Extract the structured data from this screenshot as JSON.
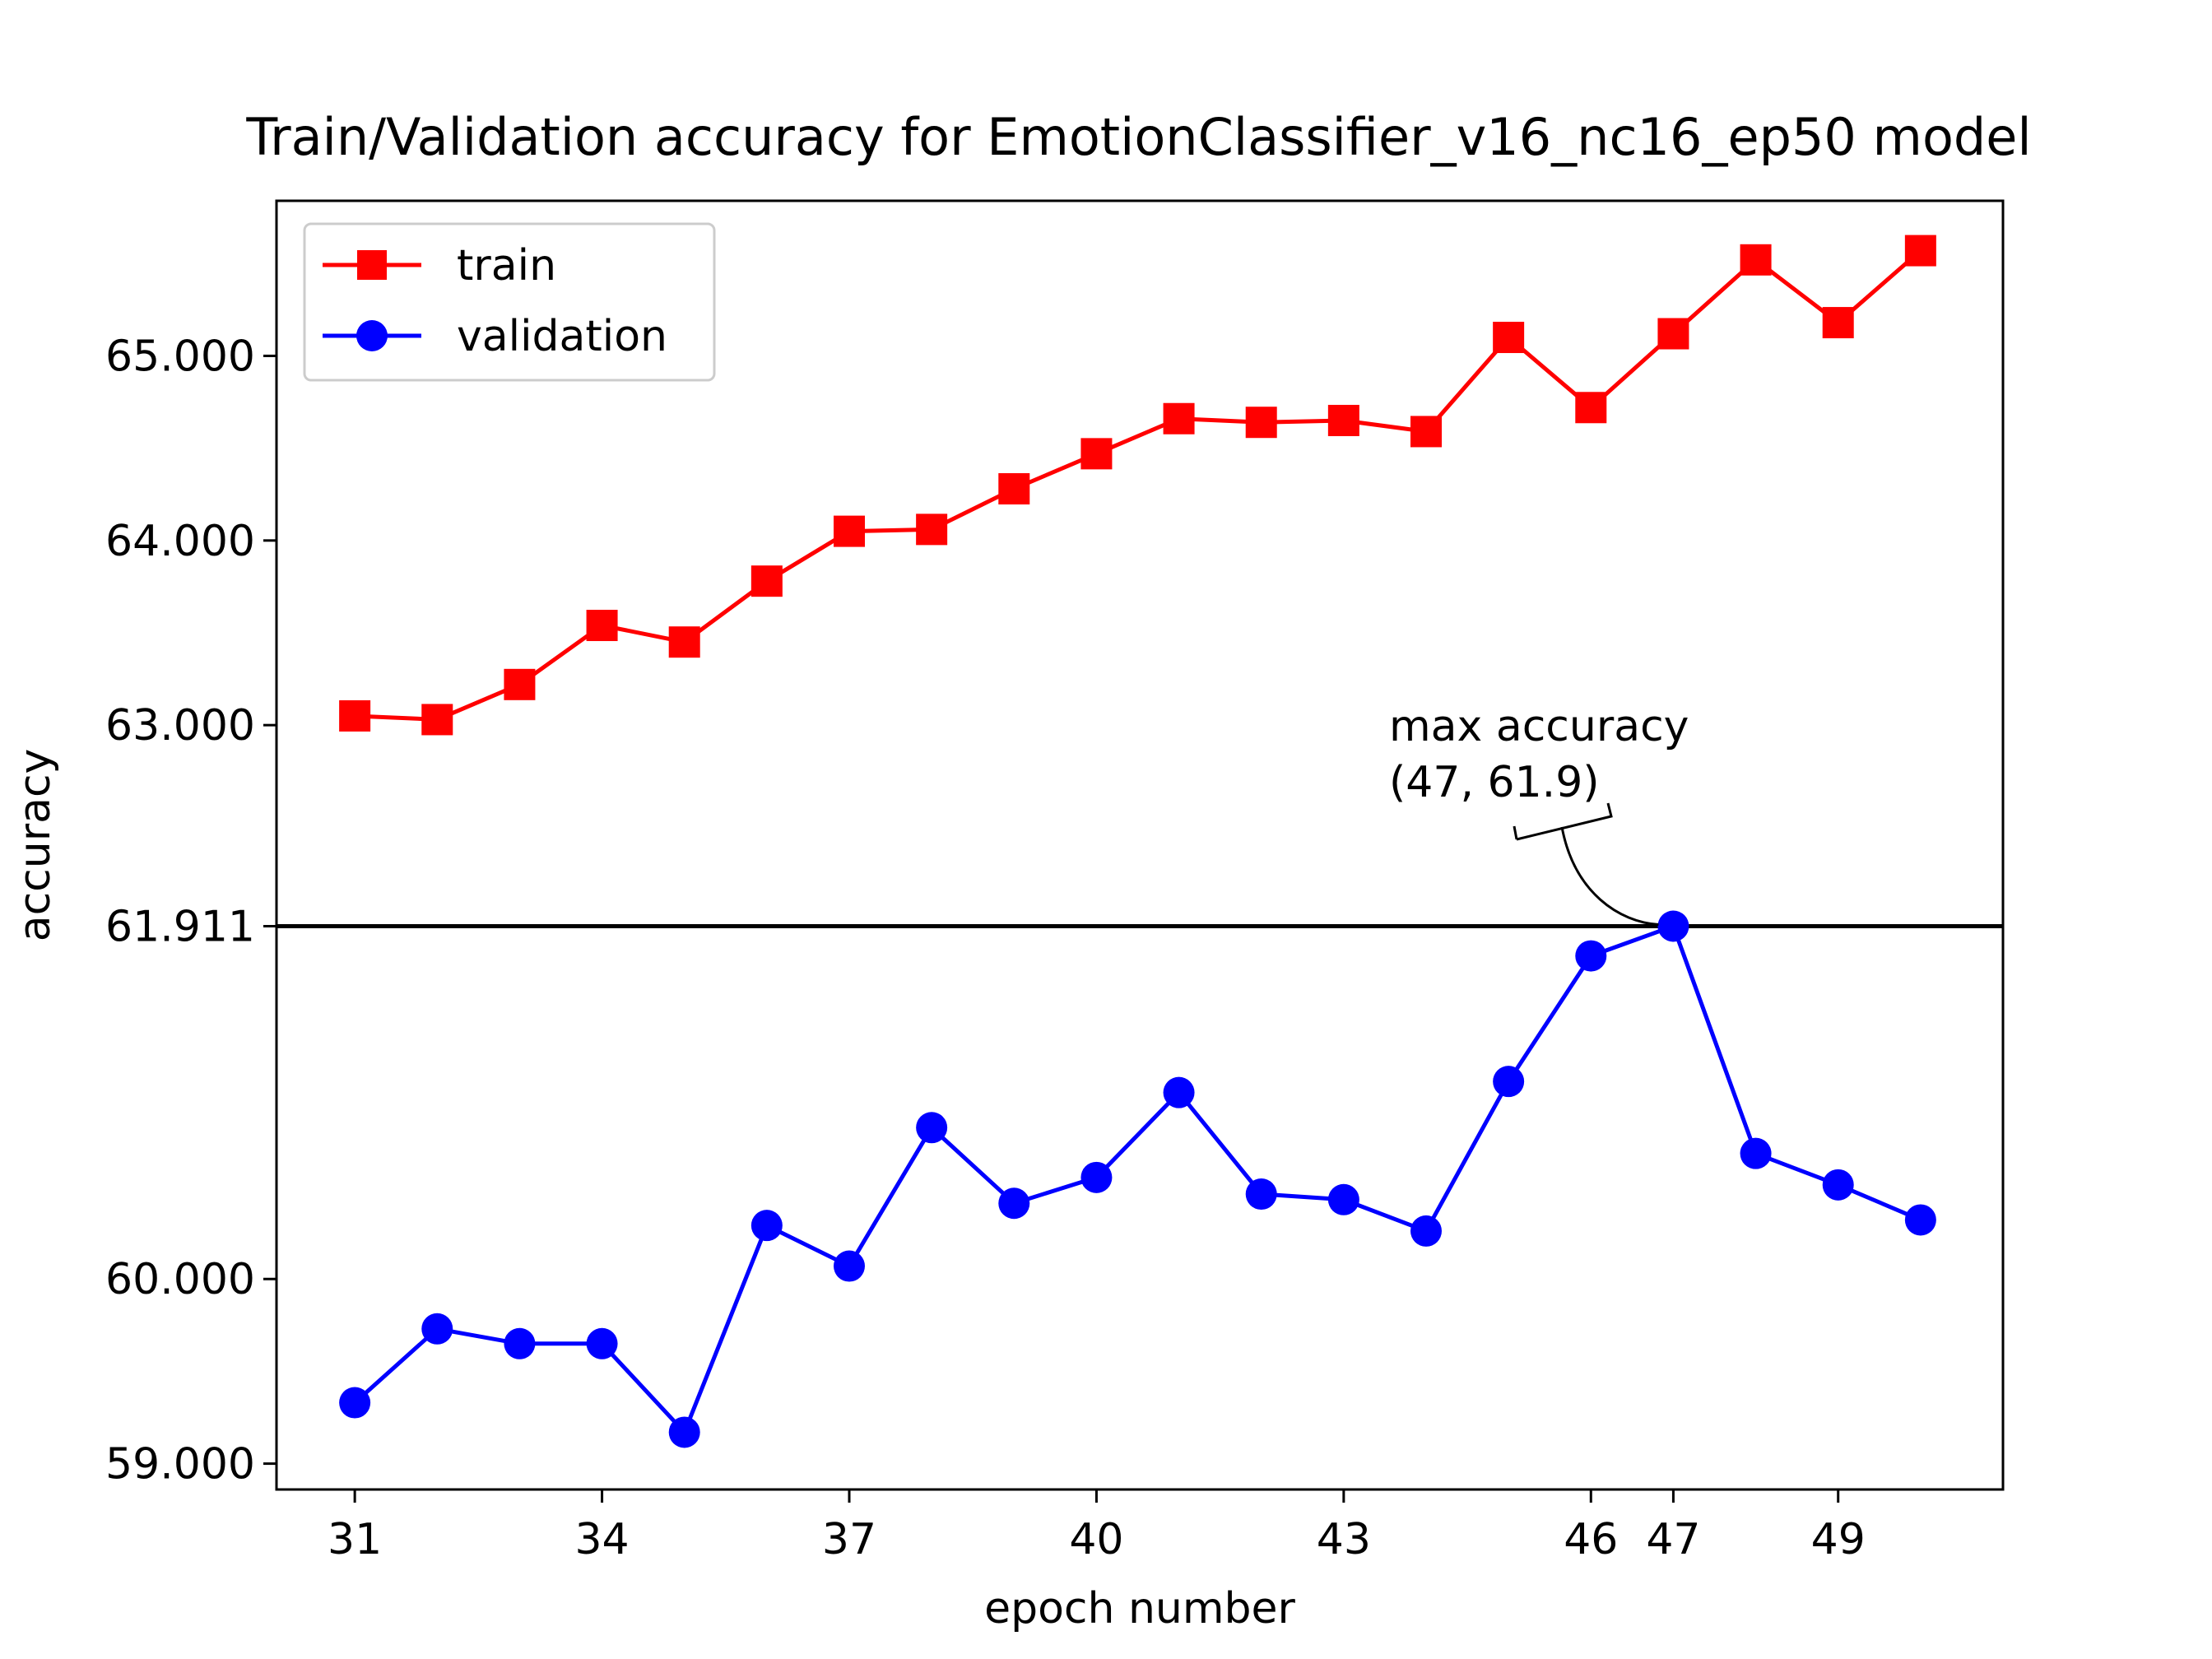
{
  "chart_data": {
    "type": "line",
    "title": "Train/Validation accuracy for EmotionClassifier_v16_nc16_ep50 model",
    "xlabel": "epoch number",
    "ylabel": "accuracy",
    "xlim": [
      30.05,
      51.0
    ],
    "ylim": [
      58.86,
      65.84
    ],
    "x": [
      31,
      32,
      33,
      34,
      35,
      36,
      37,
      38,
      39,
      40,
      41,
      42,
      43,
      44,
      45,
      46,
      47,
      48,
      49,
      50
    ],
    "xticks": [
      31,
      34,
      37,
      40,
      43,
      46,
      47,
      49
    ],
    "xtick_labels": [
      "31",
      "34",
      "37",
      "40",
      "43",
      "46",
      "47",
      "49"
    ],
    "yticks": [
      59.0,
      60.0,
      61.911,
      63.0,
      64.0,
      65.0
    ],
    "ytick_labels": [
      "59.000",
      "60.000",
      "61.911",
      "63.000",
      "64.000",
      "65.000"
    ],
    "series": [
      {
        "name": "train",
        "color": "#ff0000",
        "marker": "square",
        "values": [
          63.05,
          63.03,
          63.22,
          63.54,
          63.45,
          63.78,
          64.05,
          64.06,
          64.28,
          64.47,
          64.66,
          64.64,
          64.65,
          64.59,
          65.1,
          64.72,
          65.12,
          65.52,
          65.18,
          65.57
        ]
      },
      {
        "name": "validation",
        "color": "#0000ff",
        "marker": "circle",
        "values": [
          59.33,
          59.73,
          59.65,
          59.65,
          59.17,
          60.29,
          60.07,
          60.82,
          60.41,
          60.55,
          61.01,
          60.46,
          60.43,
          60.26,
          61.07,
          61.75,
          61.911,
          60.68,
          60.51,
          60.32
        ]
      }
    ],
    "hline": {
      "y": 61.911,
      "color": "#000000"
    },
    "annotation": {
      "line1": "max accuracy",
      "line2": "(47, 61.9)",
      "point_x": 47,
      "point_y": 61.911
    },
    "legend": {
      "placement": "upper-left"
    },
    "grid": false
  }
}
